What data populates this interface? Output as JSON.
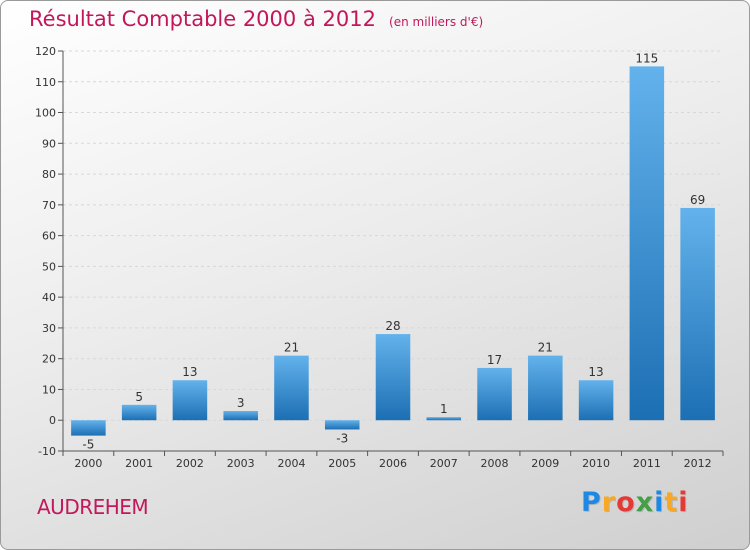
{
  "header": {
    "title": "Résultat Comptable 2000 à 2012",
    "subtitle": "(en milliers d'€)"
  },
  "footer": {
    "place": "AUDREHEM",
    "logo": [
      "P",
      "r",
      "o",
      "x",
      "i",
      "t",
      "i"
    ],
    "logo_colors": [
      "#1e88e5",
      "#f9a825",
      "#e53935",
      "#43a047",
      "#1e88e5",
      "#f9a825",
      "#e53935"
    ]
  },
  "colors": {
    "title": "#c2185b",
    "bar_top": "#63b2ec",
    "bar_bottom": "#1c6fb3",
    "axis": "#555555",
    "grid": "#d8d8d8"
  },
  "chart_data": {
    "type": "bar",
    "title": "Résultat Comptable 2000 à 2012",
    "subtitle": "(en milliers d'€)",
    "categories": [
      "2000",
      "2001",
      "2002",
      "2003",
      "2004",
      "2005",
      "2006",
      "2007",
      "2008",
      "2009",
      "2010",
      "2011",
      "2012"
    ],
    "values": [
      -5,
      5,
      13,
      3,
      21,
      -3,
      28,
      1,
      17,
      21,
      13,
      115,
      69
    ],
    "labels": [
      "-5",
      "5",
      "13",
      "3",
      "21",
      "-3",
      "28",
      "1",
      "17",
      "21",
      "13",
      "115",
      "69"
    ],
    "ylim": [
      -10,
      120
    ],
    "yticks": [
      -10,
      0,
      10,
      20,
      30,
      40,
      50,
      60,
      70,
      80,
      90,
      100,
      110,
      120
    ],
    "grid": "horizontal-dashed",
    "legend": "none"
  }
}
